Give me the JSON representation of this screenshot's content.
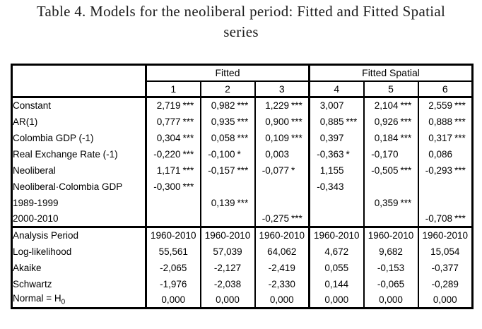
{
  "title": {
    "line1": "Table 4. Models for the neoliberal period: Fitted and Fitted Spatial",
    "line2": "series"
  },
  "colors": {
    "border": "#000000",
    "text": "#000000",
    "background": "#ffffff"
  },
  "table": {
    "groups": [
      {
        "label": "Fitted",
        "span": 3
      },
      {
        "label": "Fitted Spatial",
        "span": 3
      }
    ],
    "column_numbers": [
      "1",
      "2",
      "3",
      "4",
      "5",
      "6"
    ],
    "coefficient_rows": [
      {
        "label": "Constant",
        "values": [
          "2,719 ***",
          "0,982 ***",
          "1,229 ***",
          "3,007",
          "2,104 ***",
          "2,559 ***"
        ]
      },
      {
        "label": "AR(1)",
        "values": [
          "0,777 ***",
          "0,935 ***",
          "0,900 ***",
          "0,885 ***",
          "0,926 ***",
          "0,888 ***"
        ]
      },
      {
        "label": "Colombia GDP (-1)",
        "values": [
          "0,304 ***",
          "0,058 ***",
          "0,109 ***",
          "0,397",
          "0,184 ***",
          "0,317 ***"
        ]
      },
      {
        "label": "Real Exchange Rate (-1)",
        "values": [
          "-0,220 ***",
          "-0,100 *",
          "0,003",
          "-0,363 *",
          "-0,170",
          "0,086"
        ]
      },
      {
        "label": "Neoliberal",
        "values": [
          "1,171 ***",
          "-0,157 ***",
          "-0,077 *",
          "1,155",
          "-0,505 ***",
          "-0,293 ***"
        ]
      },
      {
        "label": "Neoliberal·Colombia GDP",
        "values": [
          "-0,300 ***",
          "",
          "",
          "-0,343",
          "",
          ""
        ]
      },
      {
        "label": "1989-1999",
        "values": [
          "",
          "0,139 ***",
          "",
          "",
          "0,359 ***",
          ""
        ]
      },
      {
        "label": "2000-2010",
        "values": [
          "",
          "",
          "-0,275 ***",
          "",
          "",
          "-0,708 ***"
        ]
      }
    ],
    "stats_rows": [
      {
        "label": "Analysis Period",
        "values": [
          "1960-2010",
          "1960-2010",
          "1960-2010",
          "1960-2010",
          "1960-2010",
          "1960-2010"
        ]
      },
      {
        "label": "Log-likelihood",
        "values": [
          "55,561",
          "57,039",
          "64,062",
          "4,672",
          "9,682",
          "15,054"
        ]
      },
      {
        "label": "Akaike",
        "values": [
          "-2,065",
          "-2,127",
          "-2,419",
          "0,055",
          "-0,153",
          "-0,377"
        ]
      },
      {
        "label": "Schwartz",
        "values": [
          "-1,976",
          "-2,038",
          "-2,330",
          "0,144",
          "-0,065",
          "-0,289"
        ]
      },
      {
        "label": "Normal = H",
        "label_sub": "0",
        "values": [
          "0,000",
          "0,000",
          "0,000",
          "0,000",
          "0,000",
          "0,000"
        ]
      }
    ]
  }
}
